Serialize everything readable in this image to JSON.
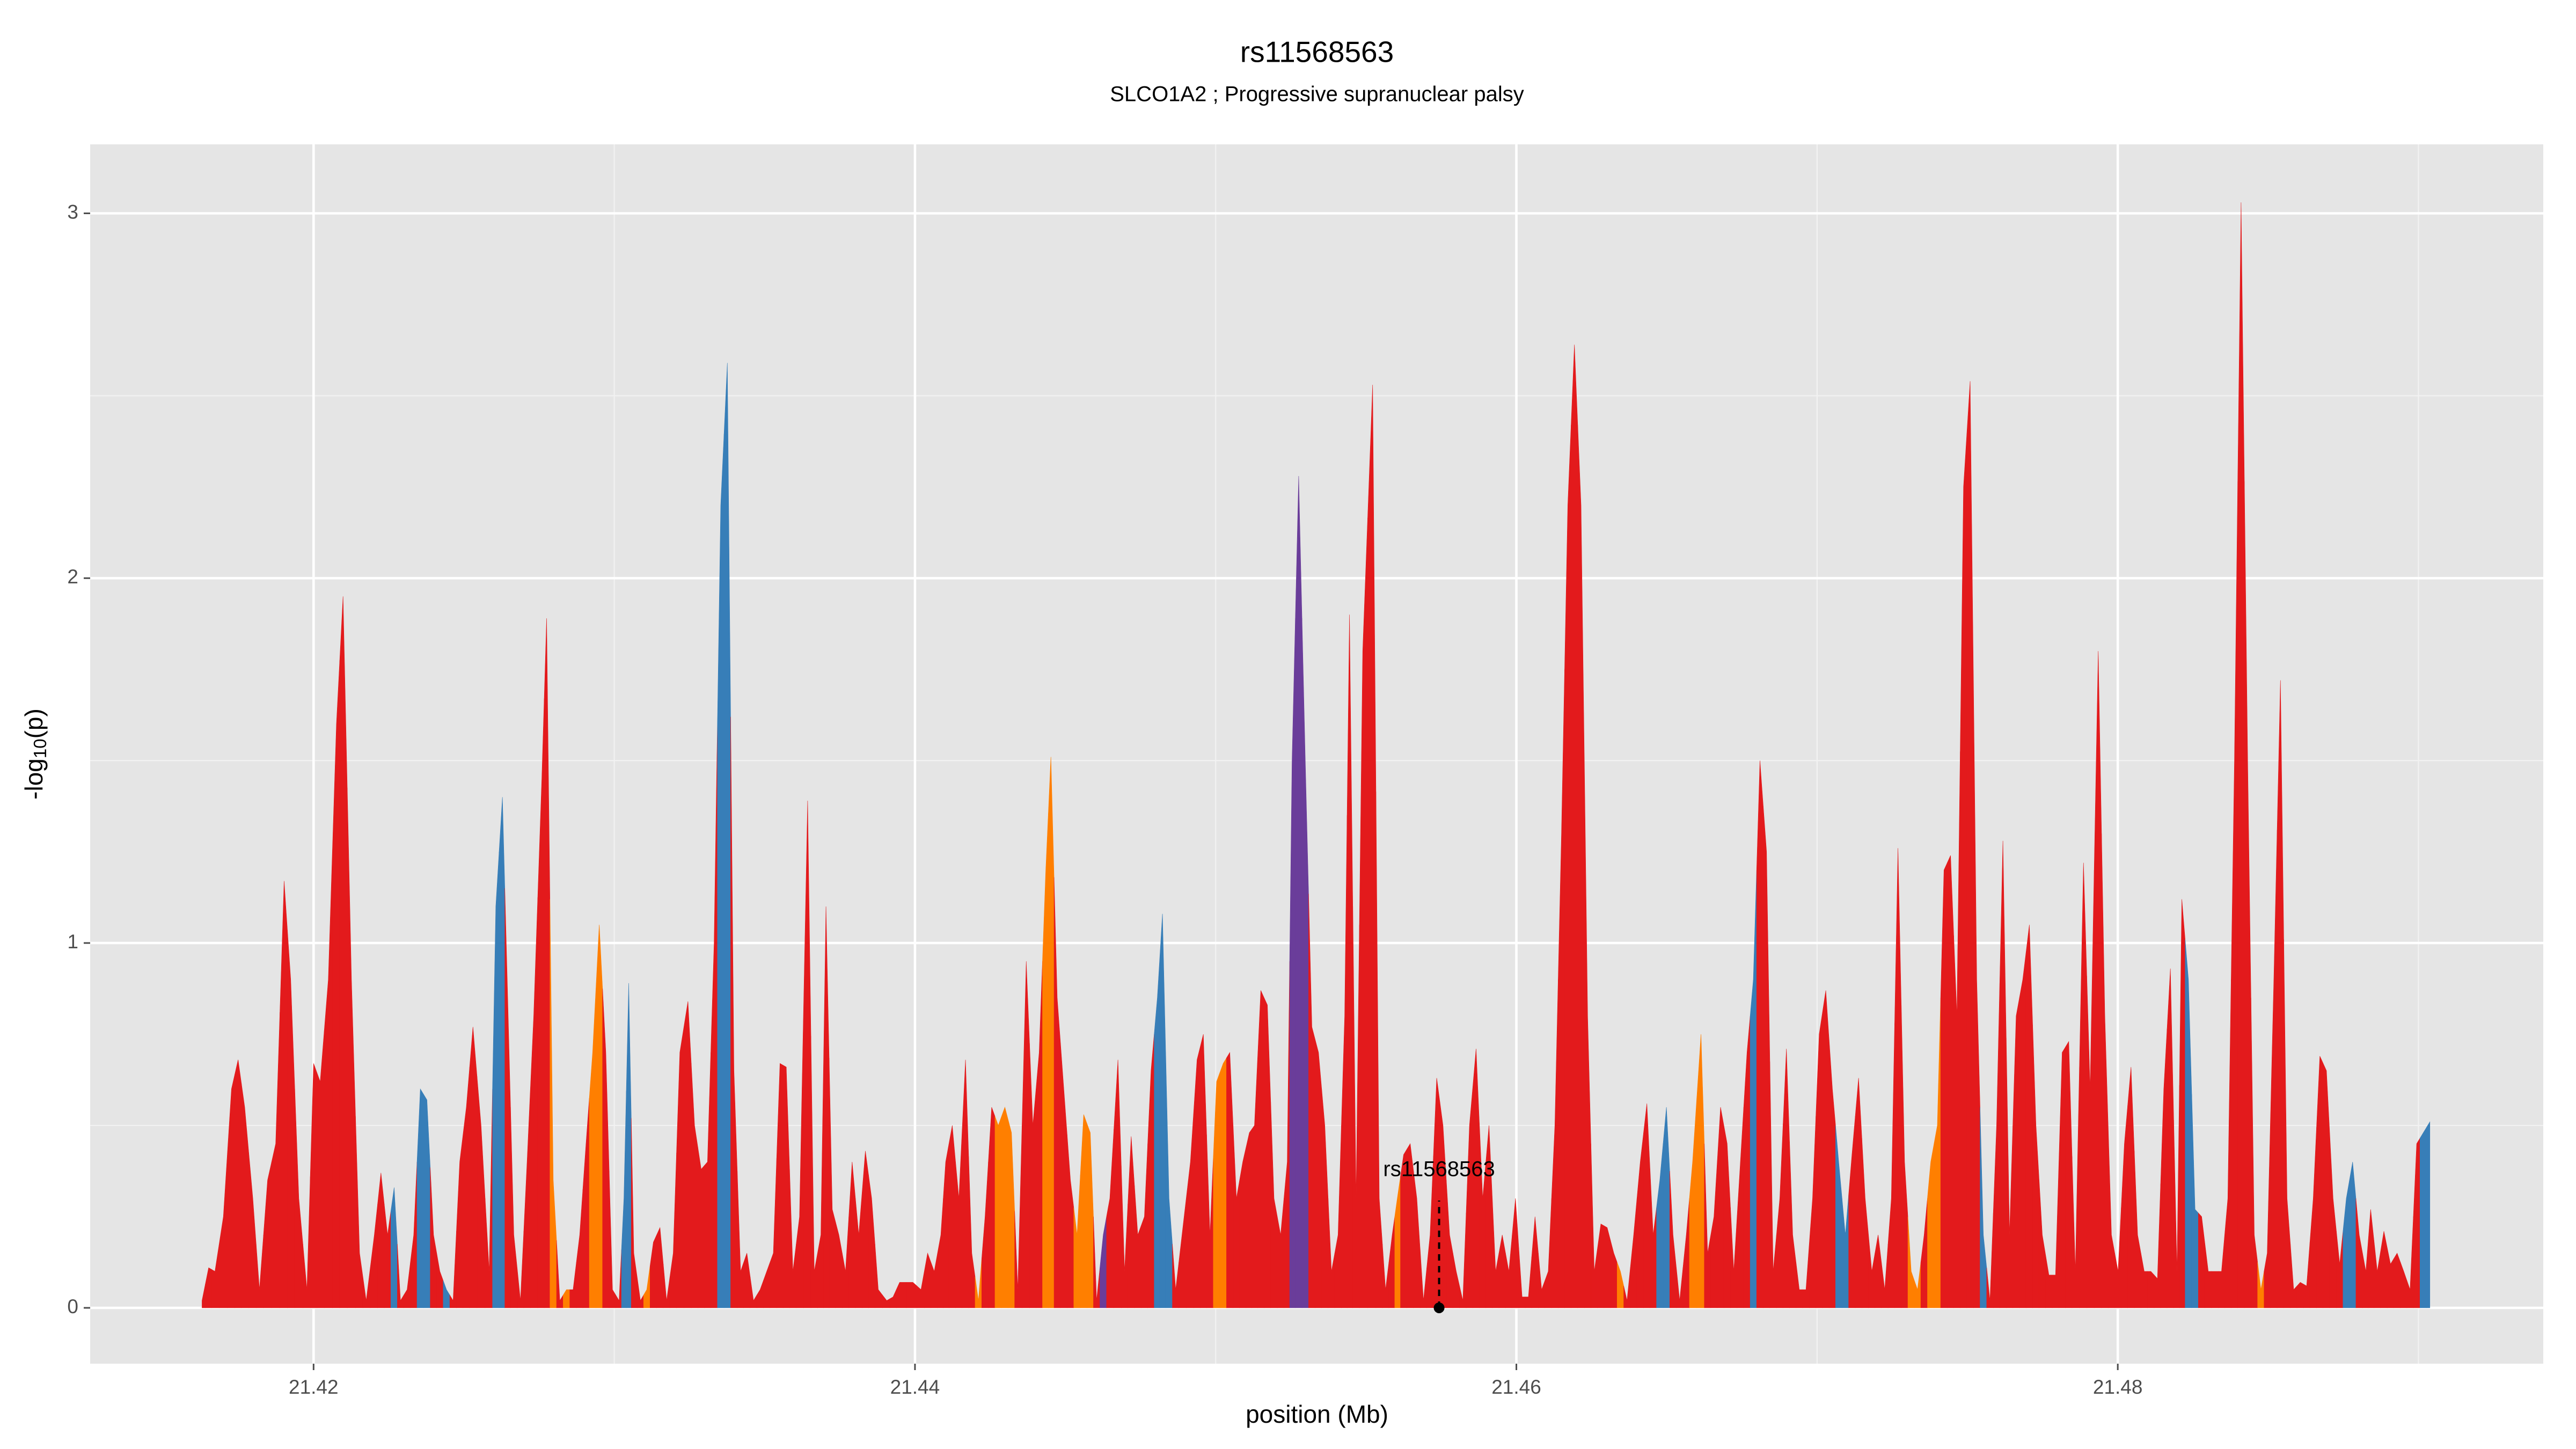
{
  "chart_data": {
    "type": "area",
    "title": "rs11568563",
    "subtitle": "SLCO1A2 ; Progressive supranuclear palsy",
    "x_label": "position (Mb)",
    "y_label": [
      "-log",
      "10",
      "(p)"
    ],
    "xlim": [
      21.41257,
      21.49415
    ],
    "ylim": [
      -0.153,
      3.189
    ],
    "xticks": [
      21.42,
      21.44,
      21.46,
      21.48
    ],
    "x_minor_ticks": [
      21.43,
      21.45,
      21.47,
      21.49
    ],
    "yticks": [
      0,
      1,
      2,
      3
    ],
    "y_minor_ticks": [
      0.5,
      1.5,
      2.5
    ],
    "grid": true,
    "panel_color": "#e5e5e5",
    "grid_color": "#ffffff",
    "annotation": {
      "label": "rs11568563",
      "x": 21.45743,
      "y": 0
    },
    "series": [
      {
        "x": [
          21.41629,
          21.41651,
          21.41672,
          21.417,
          21.41727,
          21.41749,
          21.41771,
          21.41798,
          21.4182,
          21.41847,
          21.41874,
          21.41902,
          21.41924,
          21.41951,
          21.41978,
          21.42,
          21.42022,
          21.42049,
          21.42076,
          21.42098,
          21.42126,
          21.42153,
          21.42175,
          21.42202,
          21.42224,
          21.42246,
          21.42268,
          21.42289,
          21.42311,
          21.42333,
          21.42355,
          21.42377,
          21.42399,
          21.4242,
          21.42442,
          21.42464,
          21.42486,
          21.42508,
          21.4253,
          21.42557,
          21.42584,
          21.42606,
          21.42628,
          21.42644,
          21.42666,
          21.42688,
          21.4271,
          21.42732,
          21.42759,
          21.42775,
          21.42797,
          21.42819,
          21.42841,
          21.42863,
          21.42885,
          21.42906,
          21.42928,
          21.4295,
          21.42972,
          21.42994,
          21.43016,
          21.43032,
          21.43048,
          21.43065,
          21.43087,
          21.43108,
          21.4313,
          21.43152,
          21.43174,
          21.43196,
          21.43218,
          21.43245,
          21.43267,
          21.43289,
          21.4331,
          21.43332,
          21.43354,
          21.43376,
          21.43398,
          21.4342,
          21.43441,
          21.43463,
          21.43485,
          21.43507,
          21.43529,
          21.43551,
          21.43572,
          21.43594,
          21.43616,
          21.43643,
          21.43665,
          21.43687,
          21.43704,
          21.43725,
          21.43747,
          21.43769,
          21.43791,
          21.43813,
          21.43835,
          21.43856,
          21.43878,
          21.43906,
          21.43927,
          21.43949,
          21.43993,
          21.4402,
          21.44042,
          21.44064,
          21.44086,
          21.44102,
          21.44124,
          21.44146,
          21.44168,
          21.44189,
          21.44211,
          21.44233,
          21.44255,
          21.44277,
          21.44299,
          21.44321,
          21.44342,
          21.4437,
          21.44392,
          21.44413,
          21.44435,
          21.44452,
          21.44473,
          21.44495,
          21.44517,
          21.44539,
          21.44561,
          21.44583,
          21.44604,
          21.44626,
          21.44648,
          21.44675,
          21.44697,
          21.44719,
          21.44741,
          21.44763,
          21.44785,
          21.44806,
          21.44823,
          21.44845,
          21.44867,
          21.44888,
          21.44916,
          21.44938,
          21.44959,
          21.44981,
          21.45003,
          21.45025,
          21.45047,
          21.45069,
          21.4509,
          21.45112,
          21.45129,
          21.4515,
          21.45172,
          21.45194,
          21.45216,
          21.45238,
          21.45254,
          21.45276,
          21.45298,
          21.4532,
          21.45342,
          21.45363,
          21.45385,
          21.45407,
          21.45429,
          21.45445,
          21.45467,
          21.45489,
          21.45522,
          21.45544,
          21.45565,
          21.45587,
          21.45604,
          21.45625,
          21.45647,
          21.45669,
          21.45691,
          21.45713,
          21.45735,
          21.45756,
          21.45778,
          21.458,
          21.45822,
          21.45844,
          21.45866,
          21.45888,
          21.45909,
          21.45931,
          21.45953,
          21.45975,
          21.45997,
          21.46019,
          21.4604,
          21.46062,
          21.46084,
          21.46106,
          21.46128,
          21.4615,
          21.46171,
          21.46193,
          21.46215,
          21.46237,
          21.46259,
          21.46281,
          21.46302,
          21.46324,
          21.46346,
          21.46368,
          21.4639,
          21.46412,
          21.46434,
          21.46455,
          21.46477,
          21.46499,
          21.46521,
          21.46543,
          21.46565,
          21.46586,
          21.46614,
          21.46636,
          21.46657,
          21.46679,
          21.46701,
          21.46723,
          21.46745,
          21.46767,
          21.46788,
          21.4681,
          21.46832,
          21.46854,
          21.46876,
          21.46898,
          21.46919,
          21.46941,
          21.46963,
          21.46985,
          21.47007,
          21.47029,
          21.47051,
          21.47072,
          21.47094,
          21.47116,
          21.47138,
          21.4716,
          21.47182,
          21.47203,
          21.47225,
          21.47247,
          21.47269,
          21.47291,
          21.47313,
          21.47334,
          21.47356,
          21.47378,
          21.474,
          21.47422,
          21.47444,
          21.47465,
          21.47487,
          21.47509,
          21.47531,
          21.47553,
          21.47575,
          21.47597,
          21.47618,
          21.4764,
          21.47662,
          21.47684,
          21.47706,
          21.47728,
          21.47749,
          21.47771,
          21.47793,
          21.47815,
          21.47837,
          21.47859,
          21.47886,
          21.47908,
          21.47935,
          21.47957,
          21.47979,
          21.48001,
          21.48022,
          21.48044,
          21.48066,
          21.48088,
          21.4811,
          21.48132,
          21.48153,
          21.48175,
          21.48197,
          21.48213,
          21.48235,
          21.48257,
          21.48279,
          21.48301,
          21.48323,
          21.48345,
          21.48366,
          21.48388,
          21.4841,
          21.48432,
          21.48454,
          21.48476,
          21.48497,
          21.48519,
          21.48541,
          21.48563,
          21.48585,
          21.48607,
          21.48628,
          21.4865,
          21.48672,
          21.48694,
          21.48716,
          21.48738,
          21.4876,
          21.48781,
          21.48803,
          21.48825,
          21.48841,
          21.48863,
          21.48885,
          21.48907,
          21.48929,
          21.48951,
          21.48972,
          21.48994,
          21.49016,
          21.49038
        ],
        "values": [
          0.02,
          0.11,
          0.1,
          0.25,
          0.6,
          0.68,
          0.55,
          0.3,
          0.05,
          0.35,
          0.45,
          1.17,
          0.9,
          0.3,
          0.05,
          0.67,
          0.62,
          0.9,
          1.6,
          1.95,
          0.9,
          0.15,
          0.02,
          0.2,
          0.37,
          0.2,
          0.33,
          0.02,
          0.05,
          0.2,
          0.6,
          0.57,
          0.2,
          0.1,
          0.05,
          0.02,
          0.4,
          0.55,
          0.77,
          0.5,
          0.1,
          1.1,
          1.4,
          0.9,
          0.2,
          0.02,
          0.4,
          0.8,
          1.45,
          1.89,
          0.35,
          0.02,
          0.05,
          0.05,
          0.2,
          0.45,
          0.7,
          1.05,
          0.7,
          0.05,
          0.02,
          0.3,
          0.89,
          0.15,
          0.02,
          0.05,
          0.18,
          0.22,
          0.02,
          0.15,
          0.7,
          0.84,
          0.5,
          0.38,
          0.4,
          1.0,
          2.2,
          2.59,
          0.65,
          0.1,
          0.15,
          0.02,
          0.05,
          0.1,
          0.15,
          0.67,
          0.66,
          0.1,
          0.25,
          1.39,
          0.1,
          0.2,
          1.1,
          0.27,
          0.2,
          0.1,
          0.4,
          0.2,
          0.43,
          0.3,
          0.05,
          0.02,
          0.03,
          0.07,
          0.07,
          0.05,
          0.15,
          0.1,
          0.2,
          0.4,
          0.5,
          0.3,
          0.68,
          0.15,
          0.02,
          0.25,
          0.55,
          0.5,
          0.55,
          0.48,
          0.05,
          0.95,
          0.5,
          0.7,
          1.2,
          1.51,
          0.85,
          0.6,
          0.35,
          0.2,
          0.53,
          0.48,
          0.02,
          0.2,
          0.3,
          0.68,
          0.1,
          0.47,
          0.2,
          0.25,
          0.65,
          0.85,
          1.08,
          0.3,
          0.05,
          0.2,
          0.4,
          0.68,
          0.75,
          0.2,
          0.62,
          0.67,
          0.7,
          0.3,
          0.4,
          0.48,
          0.5,
          0.87,
          0.83,
          0.3,
          0.2,
          0.4,
          1.5,
          2.28,
          1.5,
          0.77,
          0.7,
          0.5,
          0.1,
          0.2,
          0.8,
          1.9,
          0.3,
          1.8,
          2.53,
          0.3,
          0.05,
          0.2,
          0.3,
          0.42,
          0.45,
          0.3,
          0.02,
          0.2,
          0.63,
          0.5,
          0.2,
          0.1,
          0.02,
          0.5,
          0.71,
          0.3,
          0.5,
          0.1,
          0.2,
          0.1,
          0.3,
          0.03,
          0.03,
          0.25,
          0.05,
          0.1,
          0.5,
          1.3,
          2.2,
          2.64,
          2.2,
          0.8,
          0.1,
          0.23,
          0.22,
          0.15,
          0.1,
          0.02,
          0.2,
          0.4,
          0.56,
          0.2,
          0.35,
          0.55,
          0.2,
          0.02,
          0.2,
          0.4,
          0.75,
          0.15,
          0.25,
          0.55,
          0.45,
          0.1,
          0.4,
          0.7,
          0.9,
          1.5,
          1.25,
          0.1,
          0.3,
          0.71,
          0.2,
          0.05,
          0.05,
          0.3,
          0.75,
          0.87,
          0.6,
          0.4,
          0.2,
          0.42,
          0.63,
          0.3,
          0.1,
          0.2,
          0.05,
          0.3,
          1.26,
          0.4,
          0.1,
          0.05,
          0.2,
          0.4,
          0.5,
          1.2,
          1.24,
          0.8,
          2.25,
          2.54,
          0.9,
          0.2,
          0.02,
          0.5,
          1.28,
          0.2,
          0.8,
          0.9,
          1.05,
          0.5,
          0.2,
          0.09,
          0.09,
          0.7,
          0.73,
          0.1,
          1.22,
          0.6,
          1.8,
          0.8,
          0.2,
          0.1,
          0.45,
          0.66,
          0.2,
          0.1,
          0.1,
          0.08,
          0.6,
          0.93,
          0.1,
          1.12,
          0.9,
          0.27,
          0.25,
          0.1,
          0.1,
          0.1,
          0.3,
          1.5,
          3.03,
          1.5,
          0.2,
          0.05,
          0.15,
          0.9,
          1.72,
          0.3,
          0.05,
          0.07,
          0.06,
          0.3,
          0.69,
          0.65,
          0.3,
          0.12,
          0.3,
          0.4,
          0.2,
          0.1,
          0.27,
          0.1,
          0.21,
          0.12,
          0.15,
          0.1,
          0.05,
          0.45,
          0.48,
          0.51
        ],
        "colors": [
          "#e31a1c",
          "#e31a1c",
          "#e31a1c",
          "#e31a1c",
          "#e31a1c",
          "#e31a1c",
          "#e31a1c",
          "#e31a1c",
          "#e31a1c",
          "#e31a1c",
          "#e31a1c",
          "#e31a1c",
          "#e31a1c",
          "#e31a1c",
          "#e31a1c",
          "#e31a1c",
          "#e31a1c",
          "#e31a1c",
          "#e31a1c",
          "#e31a1c",
          "#e31a1c",
          "#e31a1c",
          "#e31a1c",
          "#e31a1c",
          "#e31a1c",
          "#e31a1c",
          "#377eb8",
          "#e31a1c",
          "#e31a1c",
          "#e31a1c",
          "#377eb8",
          "#377eb8",
          "#e31a1c",
          "#e31a1c",
          "#377eb8",
          "#e31a1c",
          "#e31a1c",
          "#e31a1c",
          "#e31a1c",
          "#e31a1c",
          "#e31a1c",
          "#377eb8",
          "#377eb8",
          "#e31a1c",
          "#e31a1c",
          "#e31a1c",
          "#e31a1c",
          "#e31a1c",
          "#e31a1c",
          "#e31a1c",
          "#ff7f00",
          "#e31a1c",
          "#ff7f00",
          "#e31a1c",
          "#e31a1c",
          "#e31a1c",
          "#ff7f00",
          "#ff7f00",
          "#e31a1c",
          "#e31a1c",
          "#e31a1c",
          "#377eb8",
          "#377eb8",
          "#e31a1c",
          "#e31a1c",
          "#ff7f00",
          "#e31a1c",
          "#e31a1c",
          "#e31a1c",
          "#e31a1c",
          "#e31a1c",
          "#e31a1c",
          "#e31a1c",
          "#e31a1c",
          "#e31a1c",
          "#e31a1c",
          "#377eb8",
          "#377eb8",
          "#e31a1c",
          "#e31a1c",
          "#e31a1c",
          "#e31a1c",
          "#e31a1c",
          "#e31a1c",
          "#e31a1c",
          "#e31a1c",
          "#e31a1c",
          "#e31a1c",
          "#e31a1c",
          "#e31a1c",
          "#e31a1c",
          "#e31a1c",
          "#e31a1c",
          "#e31a1c",
          "#e31a1c",
          "#e31a1c",
          "#e31a1c",
          "#e31a1c",
          "#e31a1c",
          "#e31a1c",
          "#e31a1c",
          "#e31a1c",
          "#e31a1c",
          "#e31a1c",
          "#e31a1c",
          "#e31a1c",
          "#e31a1c",
          "#e31a1c",
          "#e31a1c",
          "#e31a1c",
          "#e31a1c",
          "#e31a1c",
          "#e31a1c",
          "#e31a1c",
          "#ff7f00",
          "#e31a1c",
          "#e31a1c",
          "#ff7f00",
          "#ff7f00",
          "#ff7f00",
          "#e31a1c",
          "#e31a1c",
          "#e31a1c",
          "#e31a1c",
          "#ff7f00",
          "#ff7f00",
          "#e31a1c",
          "#e31a1c",
          "#e31a1c",
          "#ff7f00",
          "#ff7f00",
          "#ff7f00",
          "#e31a1c",
          "#6a3d9a",
          "#e31a1c",
          "#e31a1c",
          "#e31a1c",
          "#e31a1c",
          "#e31a1c",
          "#e31a1c",
          "#e31a1c",
          "#377eb8",
          "#377eb8",
          "#377eb8",
          "#e31a1c",
          "#e31a1c",
          "#e31a1c",
          "#e31a1c",
          "#e31a1c",
          "#e31a1c",
          "#ff7f00",
          "#ff7f00",
          "#e31a1c",
          "#e31a1c",
          "#e31a1c",
          "#e31a1c",
          "#e31a1c",
          "#e31a1c",
          "#e31a1c",
          "#e31a1c",
          "#e31a1c",
          "#e31a1c",
          "#6a3d9a",
          "#6a3d9a",
          "#6a3d9a",
          "#e31a1c",
          "#e31a1c",
          "#e31a1c",
          "#e31a1c",
          "#e31a1c",
          "#e31a1c",
          "#e31a1c",
          "#e31a1c",
          "#e31a1c",
          "#e31a1c",
          "#e31a1c",
          "#e31a1c",
          "#e31a1c",
          "#ff7f00",
          "#e31a1c",
          "#e31a1c",
          "#e31a1c",
          "#e31a1c",
          "#e31a1c",
          "#e31a1c",
          "#e31a1c",
          "#e31a1c",
          "#e31a1c",
          "#e31a1c",
          "#e31a1c",
          "#e31a1c",
          "#e31a1c",
          "#e31a1c",
          "#e31a1c",
          "#e31a1c",
          "#e31a1c",
          "#e31a1c",
          "#e31a1c",
          "#e31a1c",
          "#e31a1c",
          "#e31a1c",
          "#e31a1c",
          "#e31a1c",
          "#e31a1c",
          "#e31a1c",
          "#e31a1c",
          "#e31a1c",
          "#e31a1c",
          "#e31a1c",
          "#e31a1c",
          "#e31a1c",
          "#e31a1c",
          "#ff7f00",
          "#e31a1c",
          "#e31a1c",
          "#e31a1c",
          "#e31a1c",
          "#e31a1c",
          "#377eb8",
          "#377eb8",
          "#e31a1c",
          "#e31a1c",
          "#e31a1c",
          "#ff7f00",
          "#ff7f00",
          "#e31a1c",
          "#e31a1c",
          "#e31a1c",
          "#e31a1c",
          "#e31a1c",
          "#e31a1c",
          "#e31a1c",
          "#377eb8",
          "#e31a1c",
          "#e31a1c",
          "#e31a1c",
          "#e31a1c",
          "#e31a1c",
          "#e31a1c",
          "#e31a1c",
          "#e31a1c",
          "#e31a1c",
          "#e31a1c",
          "#e31a1c",
          "#e31a1c",
          "#377eb8",
          "#377eb8",
          "#e31a1c",
          "#e31a1c",
          "#e31a1c",
          "#e31a1c",
          "#e31a1c",
          "#e31a1c",
          "#e31a1c",
          "#e31a1c",
          "#e31a1c",
          "#ff7f00",
          "#ff7f00",
          "#e31a1c",
          "#ff7f00",
          "#ff7f00",
          "#e31a1c",
          "#e31a1c",
          "#e31a1c",
          "#e31a1c",
          "#e31a1c",
          "#e31a1c",
          "#377eb8",
          "#e31a1c",
          "#e31a1c",
          "#e31a1c",
          "#e31a1c",
          "#e31a1c",
          "#e31a1c",
          "#e31a1c",
          "#e31a1c",
          "#e31a1c",
          "#e31a1c",
          "#e31a1c",
          "#e31a1c",
          "#e31a1c",
          "#e31a1c",
          "#e31a1c",
          "#e31a1c",
          "#e31a1c",
          "#e31a1c",
          "#e31a1c",
          "#e31a1c",
          "#e31a1c",
          "#e31a1c",
          "#e31a1c",
          "#e31a1c",
          "#e31a1c",
          "#e31a1c",
          "#e31a1c",
          "#e31a1c",
          "#e31a1c",
          "#e31a1c",
          "#377eb8",
          "#377eb8",
          "#e31a1c",
          "#e31a1c",
          "#e31a1c",
          "#e31a1c",
          "#e31a1c",
          "#e31a1c",
          "#e31a1c",
          "#e31a1c",
          "#e31a1c",
          "#ff7f00",
          "#e31a1c",
          "#e31a1c",
          "#e31a1c",
          "#e31a1c",
          "#e31a1c",
          "#e31a1c",
          "#e31a1c",
          "#e31a1c",
          "#e31a1c",
          "#e31a1c",
          "#e31a1c",
          "#e31a1c",
          "#377eb8",
          "#377eb8",
          "#e31a1c",
          "#e31a1c",
          "#e31a1c",
          "#e31a1c",
          "#e31a1c",
          "#e31a1c",
          "#e31a1c",
          "#e31a1c",
          "#e31a1c",
          "#e31a1c",
          "#377eb8",
          "#377eb8"
        ]
      }
    ]
  }
}
